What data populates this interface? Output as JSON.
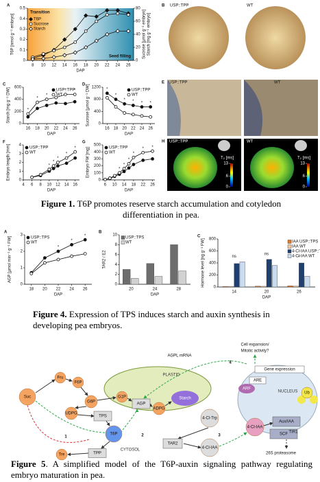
{
  "chart_data": [
    {
      "type": "line",
      "label": "A",
      "xlabel": "DAP",
      "ylabel": "T6P [nmol g⁻¹ embryo]",
      "y2label": [
        "Sucrose [µmol g⁻¹ embryo]",
        "Starch [mg g⁻¹ embryo]"
      ],
      "x": [
        8,
        10,
        12,
        14,
        16,
        18,
        20,
        22,
        24,
        26
      ],
      "xlim": [
        7,
        27
      ],
      "xticks": [
        8,
        10,
        12,
        14,
        16,
        18,
        20,
        22,
        24,
        26
      ],
      "ylim": [
        0,
        0.5
      ],
      "yticks": [
        0,
        0.1,
        0.2,
        0.3,
        0.4,
        0.5
      ],
      "y2lim": [
        0,
        80
      ],
      "y2ticks": [
        0,
        20,
        40,
        60,
        80
      ],
      "legend": "upper left",
      "annotations": [
        "Transition",
        "Seed filling"
      ],
      "series": [
        {
          "name": "T6P",
          "color": "#111111",
          "marker": "diamond-filled",
          "values": [
            0.02,
            0.05,
            0.1,
            0.2,
            0.3,
            0.43,
            0.42,
            0.48,
            0.48,
            0.45
          ]
        },
        {
          "name": "Sucrose",
          "color": "#111111",
          "marker": "circle-open",
          "axis": "y2",
          "values": [
            5,
            10,
            15,
            20,
            28,
            45,
            60,
            70,
            72,
            70
          ]
        },
        {
          "name": "Starch",
          "color": "#111111",
          "marker": "diamond-open",
          "axis": "y2",
          "values": [
            2,
            3,
            5,
            8,
            12,
            20,
            30,
            40,
            45,
            45
          ]
        }
      ]
    },
    {
      "type": "line",
      "label": "C",
      "xlabel": "DAP",
      "ylabel": "Starch [mg g⁻¹ DW]",
      "x": [
        16,
        18,
        20,
        22,
        24,
        26
      ],
      "xlim": [
        15,
        27
      ],
      "xticks": [
        16,
        18,
        20,
        22,
        24,
        26
      ],
      "ylim": [
        0,
        600
      ],
      "yticks": [
        0,
        200,
        400,
        600
      ],
      "legend": "upper right",
      "significance": [
        "*",
        "*",
        "*",
        "*",
        "*",
        "*"
      ],
      "series": [
        {
          "name": "USP::TPP",
          "color": "#111111",
          "marker": "circle-filled",
          "values": [
            110,
            250,
            300,
            340,
            330,
            360
          ]
        },
        {
          "name": "WT",
          "color": "#111111",
          "marker": "circle-open",
          "values": [
            160,
            350,
            400,
            430,
            480,
            480
          ]
        }
      ]
    },
    {
      "type": "line",
      "label": "D",
      "xlabel": "DAP",
      "ylabel": "Sucrose [µmol g⁻¹ DW]",
      "x": [
        16,
        18,
        20,
        22,
        24,
        26
      ],
      "xlim": [
        15,
        27
      ],
      "xticks": [
        16,
        18,
        20,
        22,
        24,
        26
      ],
      "ylim": [
        0,
        1200
      ],
      "yticks": [
        0,
        400,
        800,
        1200
      ],
      "legend": "upper right",
      "significance": [
        "*",
        "*",
        "*",
        "*",
        "*",
        "*"
      ],
      "series": [
        {
          "name": "USP::TPP",
          "color": "#111111",
          "marker": "circle-filled",
          "values": [
            1000,
            800,
            650,
            600,
            550,
            550
          ]
        },
        {
          "name": "WT",
          "color": "#111111",
          "marker": "circle-open",
          "values": [
            850,
            550,
            350,
            300,
            250,
            220
          ]
        }
      ]
    },
    {
      "type": "line",
      "label": "F",
      "xlabel": "DAP",
      "ylabel": "Embryo length [mm]",
      "x": [
        6,
        8,
        10,
        11,
        12,
        14,
        16
      ],
      "xlim": [
        4,
        17
      ],
      "xticks": [
        4,
        6,
        8,
        10,
        12,
        14,
        16
      ],
      "ylim": [
        0,
        4
      ],
      "yticks": [
        0,
        1,
        2,
        3,
        4
      ],
      "legend": "upper left",
      "significance": [
        null,
        null,
        "*",
        "*",
        "*",
        "*",
        "*"
      ],
      "series": [
        {
          "name": "USP::TPP",
          "color": "#111111",
          "marker": "circle-filled",
          "values": [
            0.3,
            0.5,
            1.0,
            1.3,
            1.6,
            1.9,
            2.5
          ]
        },
        {
          "name": "WT",
          "color": "#111111",
          "marker": "circle-open",
          "values": [
            0.3,
            0.6,
            1.2,
            1.6,
            2.0,
            2.5,
            3.2
          ]
        }
      ]
    },
    {
      "type": "line",
      "label": "G",
      "xlabel": "DAP",
      "ylabel": "Embryo FW [mg]",
      "x": [
        6,
        8,
        10,
        12,
        14,
        16,
        18,
        22,
        26
      ],
      "xlim": [
        5,
        27
      ],
      "xticks": [
        6,
        10,
        14,
        18,
        22,
        26
      ],
      "ylim": [
        0,
        500
      ],
      "yticks": [
        0,
        100,
        200,
        300,
        400,
        500
      ],
      "legend": "upper left",
      "significance": [
        null,
        null,
        null,
        "*",
        "*",
        "*",
        "*",
        "*",
        "*"
      ],
      "series": [
        {
          "name": "USP::TPP",
          "color": "#111111",
          "marker": "circle-filled",
          "values": [
            5,
            20,
            50,
            80,
            120,
            170,
            220,
            280,
            300
          ]
        },
        {
          "name": "WT",
          "color": "#111111",
          "marker": "circle-open",
          "values": [
            5,
            25,
            60,
            100,
            160,
            230,
            320,
            390,
            410
          ]
        }
      ]
    },
    {
      "type": "line",
      "label": "A",
      "xlabel": "DAP",
      "ylabel": "AGP [µmol min⁻¹ g⁻¹ FW]",
      "x": [
        18,
        20,
        22,
        24,
        26
      ],
      "xlim": [
        17,
        27
      ],
      "xticks": [
        18,
        20,
        22,
        24,
        26
      ],
      "ylim": [
        0,
        3
      ],
      "yticks": [
        0,
        1,
        2,
        3
      ],
      "legend": "upper left",
      "significance": [
        null,
        null,
        "*",
        "*",
        "*"
      ],
      "series": [
        {
          "name": "USP::TPS",
          "color": "#111111",
          "marker": "circle-filled",
          "values": [
            0.7,
            1.6,
            2.0,
            2.4,
            2.7
          ]
        },
        {
          "name": "WT",
          "color": "#111111",
          "marker": "circle-open",
          "values": [
            0.65,
            1.3,
            1.5,
            1.7,
            1.85
          ]
        }
      ]
    },
    {
      "type": "bar",
      "label": "B",
      "xlabel": "DAP",
      "ylabel": "TAR2 / E2",
      "categories": [
        "20",
        "24",
        "28"
      ],
      "ylim": [
        0,
        10
      ],
      "yticks": [
        0,
        2,
        4,
        6,
        8,
        10
      ],
      "legend": "upper left",
      "series": [
        {
          "name": "USP::TPS",
          "color": "#6d6d6d",
          "values": [
            3,
            4.2,
            8
          ]
        },
        {
          "name": "WT",
          "color": "#d2d2d2",
          "values": [
            1.2,
            1.6,
            2.7
          ]
        }
      ]
    },
    {
      "type": "bar",
      "label": "C",
      "xlabel": "DAP",
      "ylabel": "Hormone level [ng g⁻¹ FW]",
      "categories": [
        "14",
        "20",
        "26"
      ],
      "ylim": [
        0,
        800
      ],
      "yticks": [
        0,
        200,
        400,
        600,
        800
      ],
      "legend": "upper right",
      "significance": [
        "ns",
        "ns",
        "*"
      ],
      "series": [
        {
          "name": "IAA USP::TPS",
          "color": "#e07a2e",
          "values": [
            10,
            15,
            20
          ]
        },
        {
          "name": "IAA WT",
          "color": "#f5c9a0",
          "values": [
            10,
            12,
            15
          ]
        },
        {
          "name": "4-Cl-IAA USP::TPS",
          "color": "#1f3f6e",
          "values": [
            390,
            460,
            400
          ]
        },
        {
          "name": "4-Cl-IAA WT",
          "color": "#c9dcef",
          "values": [
            420,
            360,
            180
          ]
        }
      ]
    }
  ],
  "photos": [
    {
      "label": "B",
      "captions": [
        "USP::TPP",
        "WT"
      ]
    },
    {
      "label": "E",
      "captions": [
        "USP::TPP",
        "WT"
      ]
    },
    {
      "label": "H",
      "captions": [
        "USP::TPP",
        "WT"
      ],
      "colorbar": {
        "label": "T₂ [ms]",
        "lim": [
          0,
          13
        ],
        "ticks": [
          0,
          6,
          13
        ]
      }
    }
  ],
  "captions": [
    {
      "label": "Figure 1.",
      "text": "T6P promotes reserve starch accumulation and cotyledon differentiation in pea."
    },
    {
      "label": "Figure 4.",
      "text": "Expression of TPS induces starch and auxin synthesis in developing pea embryos."
    },
    {
      "label": "Figure 5",
      "text": ". A simplified model of the T6P-auxin signaling pathway regulating embryo maturation in pea."
    }
  ],
  "diagram": {
    "nodes": [
      {
        "label": "Cell expansion/"
      },
      {
        "label": "Mitotic activity?"
      },
      {
        "label": "4"
      },
      {
        "label": "AGPL mRNA"
      },
      {
        "label": "PLASTID"
      },
      {
        "label": "Gene expression"
      },
      {
        "label": "ARE"
      },
      {
        "label": "ARF"
      },
      {
        "label": "NUCLEUS"
      },
      {
        "label": "Suc"
      },
      {
        "label": "Fru"
      },
      {
        "label": "F6P"
      },
      {
        "label": "G6P"
      },
      {
        "label": "G1P"
      },
      {
        "label": "AGP"
      },
      {
        "label": "ADPG"
      },
      {
        "label": "Starch"
      },
      {
        "label": "UDPG"
      },
      {
        "label": "TPS"
      },
      {
        "label": "T6P"
      },
      {
        "label": "1"
      },
      {
        "label": "2"
      },
      {
        "label": "3"
      },
      {
        "label": "Tre"
      },
      {
        "label": "TPP"
      },
      {
        "label": "TAR2"
      },
      {
        "label": "4-Cl-Trp"
      },
      {
        "label": "4-Cl-IAA"
      },
      {
        "label": "4-Cl-IAA"
      },
      {
        "label": "Aux/IAA"
      },
      {
        "label": "SCF"
      },
      {
        "label": "TIR1"
      },
      {
        "label": "Ub"
      },
      {
        "label": "26S proteasome"
      },
      {
        "label": "CYTOSOL"
      }
    ]
  }
}
